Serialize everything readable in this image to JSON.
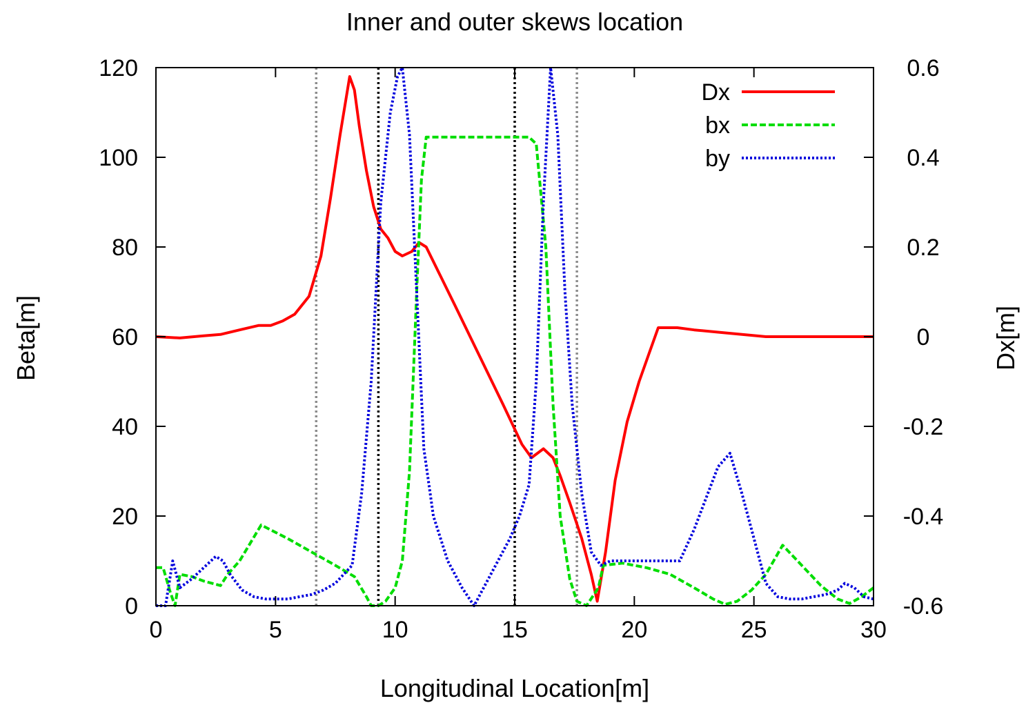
{
  "chart_data": {
    "type": "line",
    "title": "Inner and outer skews location",
    "xlabel": "Longitudinal Location[m]",
    "ylabel": "Beta[m]",
    "y2label": "Dx[m]",
    "xlim": [
      0,
      30
    ],
    "ylim": [
      0,
      120
    ],
    "y2lim": [
      -0.6,
      0.6
    ],
    "x_ticks": [
      "0",
      "5",
      "10",
      "15",
      "20",
      "25",
      "30"
    ],
    "y_ticks": [
      "0",
      "20",
      "40",
      "60",
      "80",
      "100",
      "120"
    ],
    "y2_ticks": [
      "-0.6",
      "-0.4",
      "-0.2",
      "0",
      "0.2",
      "0.4",
      "0.6"
    ],
    "grid": false,
    "legend_position": "top-right",
    "vertical_markers": [
      {
        "x": 6.7,
        "color": "#8c8c8c"
      },
      {
        "x": 9.3,
        "color": "#000000"
      },
      {
        "x": 15.0,
        "color": "#000000"
      },
      {
        "x": 17.6,
        "color": "#8c8c8c"
      }
    ],
    "series": [
      {
        "name": "Dx",
        "axis": "right",
        "color": "#ff0000",
        "dash": "solid",
        "x": [
          0,
          1,
          2,
          2.7,
          3.5,
          4.3,
          4.8,
          5.3,
          5.8,
          6.1,
          6.4,
          6.9,
          7.3,
          7.7,
          8.1,
          8.3,
          8.5,
          8.8,
          9.1,
          9.4,
          9.7,
          10.0,
          10.3,
          10.7,
          11.0,
          11.3,
          12.5,
          13.5,
          14.5,
          15.3,
          15.7,
          16.2,
          16.6,
          16.9,
          17.3,
          17.8,
          18.2,
          18.45,
          18.8,
          19.2,
          19.7,
          20.2,
          20.6,
          21.0,
          21.8,
          22.5,
          23.5,
          24.5,
          25.5,
          30
        ],
        "y": [
          0,
          -0.003,
          0.002,
          0.005,
          0.015,
          0.025,
          0.025,
          0.035,
          0.05,
          0.07,
          0.09,
          0.18,
          0.31,
          0.45,
          0.58,
          0.55,
          0.47,
          0.37,
          0.29,
          0.24,
          0.22,
          0.19,
          0.18,
          0.19,
          0.21,
          0.2,
          0.07,
          -0.04,
          -0.15,
          -0.24,
          -0.27,
          -0.25,
          -0.27,
          -0.31,
          -0.37,
          -0.45,
          -0.53,
          -0.59,
          -0.48,
          -0.32,
          -0.19,
          -0.1,
          -0.04,
          0.02,
          0.02,
          0.015,
          0.01,
          0.005,
          0,
          0
        ]
      },
      {
        "name": "bx",
        "axis": "left",
        "color": "#00dd00",
        "dash": "dashed",
        "x": [
          0,
          0.3,
          0.6,
          0.8,
          1.0,
          1.5,
          2.0,
          2.7,
          3.0,
          3.5,
          4.4,
          5.5,
          6.5,
          7.5,
          8.3,
          8.8,
          9.0,
          9.3,
          9.6,
          10.0,
          10.3,
          10.6,
          10.9,
          11.1,
          11.3,
          12.0,
          13.0,
          14.0,
          15.0,
          15.6,
          15.9,
          16.3,
          16.6,
          16.9,
          17.3,
          17.6,
          18.0,
          18.5,
          18.7,
          19.5,
          20.5,
          21.5,
          22.5,
          23.3,
          23.8,
          24.3,
          24.9,
          25.5,
          26.2,
          27.0,
          27.8,
          28.5,
          29.0,
          29.5,
          30
        ],
        "y": [
          8.5,
          8.5,
          3,
          0,
          7,
          6.5,
          5.5,
          4.5,
          7,
          10,
          18,
          15,
          12,
          9,
          6.5,
          2,
          0,
          0,
          1,
          4,
          10,
          30,
          70,
          95,
          104.5,
          104.5,
          104.5,
          104.5,
          104.5,
          104.5,
          103,
          80,
          45,
          20,
          6,
          1,
          0,
          4,
          9,
          9.5,
          8.5,
          7,
          4,
          1.5,
          0.3,
          1,
          3.5,
          7,
          13.5,
          9,
          4.5,
          1.5,
          0.5,
          2,
          4
        ]
      },
      {
        "name": "by",
        "axis": "left",
        "color": "#0000dd",
        "dash": "dotted",
        "x": [
          0,
          0.4,
          0.7,
          1.0,
          1.5,
          2.0,
          2.5,
          2.8,
          3.1,
          3.6,
          4.1,
          4.6,
          5.0,
          5.5,
          6.0,
          6.5,
          7.0,
          7.5,
          8.2,
          8.6,
          9.0,
          9.4,
          9.8,
          10.1,
          10.3,
          10.6,
          10.9,
          11.2,
          11.6,
          12.2,
          12.8,
          13.3,
          13.8,
          14.3,
          14.8,
          15.2,
          15.6,
          15.9,
          16.2,
          16.5,
          16.8,
          17.1,
          17.4,
          17.8,
          18.2,
          18.6,
          19.0,
          19.5,
          20.5,
          21.3,
          21.9,
          22.5,
          23.0,
          23.5,
          24.0,
          24.5,
          25.0,
          25.5,
          26.0,
          26.5,
          27.0,
          27.5,
          28.0,
          28.5,
          28.8,
          29.2,
          29.6,
          30
        ],
        "y": [
          0,
          0,
          10,
          4,
          6,
          8.5,
          11,
          10,
          7,
          3.5,
          2,
          1.5,
          1.5,
          1.5,
          2,
          2.5,
          3.5,
          5,
          9,
          25,
          50,
          90,
          110,
          118,
          120,
          105,
          70,
          35,
          20,
          10,
          4,
          0,
          5,
          10,
          15,
          20,
          27,
          50,
          90,
          120,
          105,
          70,
          45,
          25,
          12,
          9,
          10,
          10,
          10,
          10,
          10,
          17,
          24,
          31,
          34,
          25,
          15,
          5,
          2,
          1.5,
          1.5,
          2,
          2.5,
          3.5,
          5,
          4,
          2,
          1.5
        ]
      }
    ]
  }
}
